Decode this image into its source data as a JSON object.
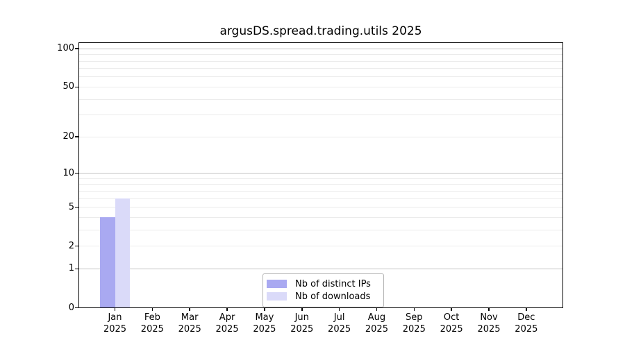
{
  "chart_data": {
    "type": "bar",
    "title": "argusDS.spread.trading.utils 2025",
    "x_months": [
      "Jan",
      "Feb",
      "Mar",
      "Apr",
      "May",
      "Jun",
      "Jul",
      "Aug",
      "Sep",
      "Oct",
      "Nov",
      "Dec"
    ],
    "x_year": "2025",
    "series": [
      {
        "name": "Nb of distinct IPs",
        "color": "#a9a9f1",
        "values": [
          4,
          0,
          0,
          0,
          0,
          0,
          0,
          0,
          0,
          0,
          0,
          0
        ]
      },
      {
        "name": "Nb of downloads",
        "color": "#dadaf9",
        "values": [
          6,
          0,
          0,
          0,
          0,
          0,
          0,
          0,
          0,
          0,
          0,
          0
        ]
      }
    ],
    "yscale": "log1p",
    "yticks": [
      0,
      1,
      2,
      5,
      10,
      20,
      50,
      100
    ],
    "ylim": [
      0,
      112
    ],
    "grid_major": [
      1,
      10,
      100
    ],
    "grid_minor": [
      2,
      3,
      4,
      5,
      6,
      7,
      8,
      9,
      20,
      30,
      40,
      50,
      60,
      70,
      80,
      90
    ],
    "grid": "horizontal only",
    "legend_position": "lower center"
  }
}
